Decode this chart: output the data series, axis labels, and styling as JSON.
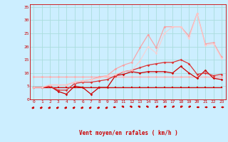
{
  "bg_color": "#cceeff",
  "grid_color": "#aadddd",
  "xlabel": "Vent moyen/en rafales ( km/h )",
  "xlabel_color": "#cc0000",
  "xticks": [
    0,
    1,
    2,
    3,
    4,
    5,
    6,
    7,
    8,
    9,
    10,
    11,
    12,
    13,
    14,
    15,
    16,
    17,
    18,
    19,
    20,
    21,
    22,
    23
  ],
  "yticks": [
    0,
    5,
    10,
    15,
    20,
    25,
    30,
    35
  ],
  "ylim": [
    0,
    36
  ],
  "xlim": [
    -0.5,
    23.5
  ],
  "lines": [
    {
      "x": [
        0,
        1,
        2,
        3,
        4,
        5,
        6,
        7,
        8,
        9,
        10,
        11,
        12,
        13,
        14,
        15,
        16,
        17,
        18,
        19,
        20,
        21,
        22,
        23
      ],
      "y": [
        4.5,
        4.5,
        4.5,
        4.5,
        4.5,
        4.5,
        4.5,
        4.5,
        4.5,
        4.5,
        4.5,
        4.5,
        4.5,
        4.5,
        4.5,
        4.5,
        4.5,
        4.5,
        4.5,
        4.5,
        4.5,
        4.5,
        4.5,
        4.5
      ],
      "color": "#cc0000",
      "lw": 0.9,
      "marker": "s",
      "ms": 1.8,
      "alpha": 1.0
    },
    {
      "x": [
        0,
        1,
        2,
        3,
        4,
        5,
        6,
        7,
        8,
        9,
        10,
        11,
        12,
        13,
        14,
        15,
        16,
        17,
        18,
        19,
        20,
        21,
        22,
        23
      ],
      "y": [
        8.5,
        8.5,
        8.5,
        8.5,
        8.5,
        8.5,
        8.5,
        8.5,
        8.5,
        8.5,
        8.5,
        8.5,
        8.5,
        8.5,
        8.5,
        8.5,
        8.5,
        8.5,
        8.5,
        8.5,
        8.5,
        8.5,
        8.5,
        8.5
      ],
      "color": "#ffaaaa",
      "lw": 0.9,
      "marker": "D",
      "ms": 1.8,
      "alpha": 1.0
    },
    {
      "x": [
        0,
        1,
        2,
        3,
        4,
        5,
        6,
        7,
        8,
        9,
        10,
        11,
        12,
        13,
        14,
        15,
        16,
        17,
        18,
        19,
        20,
        21,
        22,
        23
      ],
      "y": [
        4.5,
        4.5,
        5.0,
        3.0,
        2.0,
        5.0,
        4.5,
        2.0,
        4.5,
        4.5,
        9.0,
        9.5,
        10.5,
        10.0,
        10.5,
        10.5,
        10.5,
        10.0,
        12.5,
        10.0,
        8.0,
        11.0,
        8.0,
        7.5
      ],
      "color": "#cc0000",
      "lw": 0.9,
      "marker": "D",
      "ms": 1.8,
      "alpha": 1.0
    },
    {
      "x": [
        0,
        1,
        2,
        3,
        4,
        5,
        6,
        7,
        8,
        9,
        10,
        11,
        12,
        13,
        14,
        15,
        16,
        17,
        18,
        19,
        20,
        21,
        22,
        23
      ],
      "y": [
        4.5,
        4.5,
        5.0,
        3.5,
        3.5,
        6.0,
        6.5,
        6.5,
        7.0,
        7.5,
        9.0,
        10.5,
        11.0,
        12.0,
        13.0,
        13.5,
        14.0,
        14.0,
        15.0,
        13.5,
        9.5,
        10.0,
        9.0,
        9.5
      ],
      "color": "#dd3333",
      "lw": 0.9,
      "marker": "D",
      "ms": 1.8,
      "alpha": 1.0
    },
    {
      "x": [
        0,
        1,
        2,
        3,
        4,
        5,
        6,
        7,
        8,
        9,
        10,
        11,
        12,
        13,
        14,
        15,
        16,
        17,
        18,
        19,
        20,
        21,
        22,
        23
      ],
      "y": [
        4.5,
        4.5,
        5.5,
        5.5,
        5.5,
        6.5,
        7.0,
        7.5,
        8.5,
        9.0,
        11.5,
        13.0,
        14.0,
        19.5,
        24.5,
        19.5,
        27.5,
        27.5,
        27.5,
        24.0,
        32.5,
        21.0,
        21.5,
        16.0
      ],
      "color": "#ff9999",
      "lw": 0.9,
      "marker": "D",
      "ms": 1.8,
      "alpha": 0.85
    },
    {
      "x": [
        0,
        1,
        2,
        3,
        4,
        5,
        6,
        7,
        8,
        9,
        10,
        11,
        12,
        13,
        14,
        15,
        16,
        17,
        18,
        19,
        20,
        21,
        22,
        23
      ],
      "y": [
        4.5,
        4.5,
        5.5,
        5.5,
        5.5,
        6.5,
        7.0,
        7.5,
        8.0,
        9.0,
        9.5,
        10.5,
        11.0,
        14.5,
        20.0,
        17.5,
        25.0,
        27.5,
        27.5,
        23.0,
        32.5,
        20.5,
        21.0,
        15.5
      ],
      "color": "#ffcccc",
      "lw": 0.9,
      "marker": "D",
      "ms": 1.8,
      "alpha": 0.8
    }
  ],
  "wind_arrows": {
    "x": [
      0,
      1,
      2,
      3,
      4,
      5,
      6,
      7,
      8,
      9,
      10,
      11,
      12,
      13,
      14,
      15,
      16,
      17,
      18,
      19,
      20,
      21,
      22,
      23
    ],
    "angles": [
      225,
      225,
      225,
      225,
      225,
      225,
      225,
      225,
      225,
      225,
      270,
      315,
      315,
      315,
      315,
      45,
      45,
      45,
      45,
      45,
      90,
      90,
      90,
      90
    ]
  }
}
